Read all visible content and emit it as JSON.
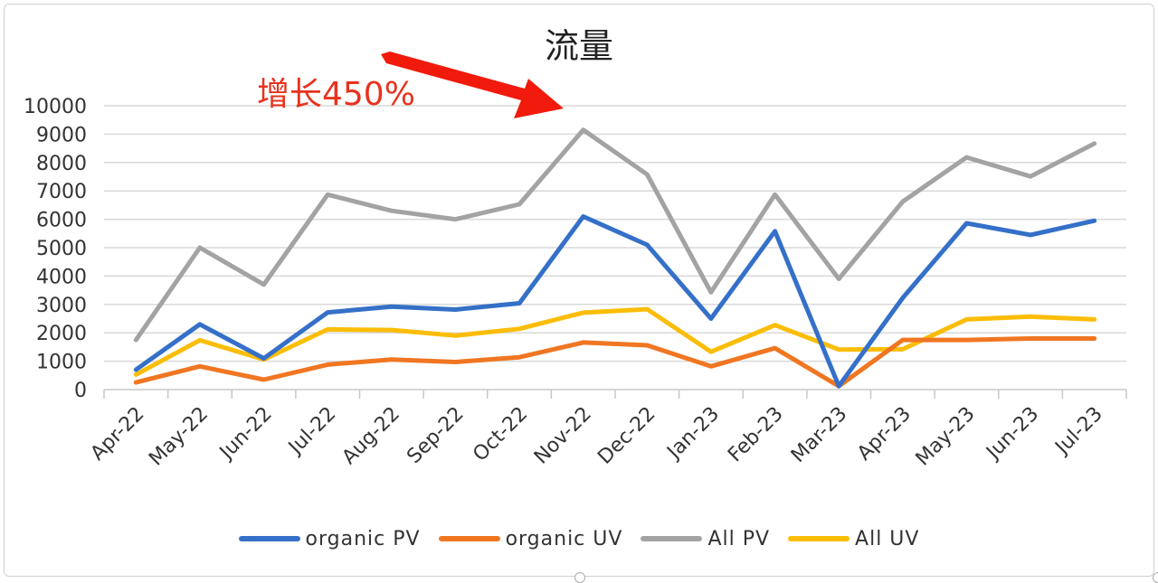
{
  "chart_data": {
    "type": "line",
    "title": "流量",
    "xlabel": "",
    "ylabel": "",
    "ylim": [
      0,
      10000
    ],
    "yticks": [
      0,
      1000,
      2000,
      3000,
      4000,
      5000,
      6000,
      7000,
      8000,
      9000,
      10000
    ],
    "grid": true,
    "legend_position": "bottom",
    "categories": [
      "Apr-22",
      "May-22",
      "Jun-22",
      "Jul-22",
      "Aug-22",
      "Sep-22",
      "Oct-22",
      "Nov-22",
      "Dec-22",
      "Jan-23",
      "Feb-23",
      "Mar-23",
      "Apr-23",
      "May-23",
      "Jun-23",
      "Jul-23"
    ],
    "series": [
      {
        "name": "organic PV",
        "color": "#3570c8",
        "values": [
          700,
          2300,
          1100,
          2720,
          2920,
          2820,
          3040,
          6100,
          5100,
          2500,
          5580,
          120,
          3230,
          5860,
          5450,
          5950
        ]
      },
      {
        "name": "organic UV",
        "color": "#f07622",
        "values": [
          250,
          820,
          350,
          880,
          1060,
          970,
          1140,
          1660,
          1560,
          820,
          1460,
          120,
          1750,
          1750,
          1800,
          1800
        ]
      },
      {
        "name": "All PV",
        "color": "#a3a3a3",
        "values": [
          1750,
          5000,
          3700,
          6870,
          6300,
          6000,
          6530,
          9150,
          7580,
          3430,
          6870,
          3900,
          6620,
          8180,
          7510,
          8670
        ]
      },
      {
        "name": "All UV",
        "color": "#fbbd08",
        "values": [
          530,
          1740,
          1060,
          2120,
          2100,
          1900,
          2140,
          2710,
          2830,
          1330,
          2270,
          1410,
          1420,
          2470,
          2570,
          2470
        ]
      }
    ],
    "annotation": {
      "text": "增长450%",
      "color": "#e8321e",
      "arrow_color": "#f21a0c"
    }
  },
  "legend": {
    "items": [
      {
        "label": "organic PV",
        "color": "#3570c8"
      },
      {
        "label": "organic UV",
        "color": "#f07622"
      },
      {
        "label": "All PV",
        "color": "#a3a3a3"
      },
      {
        "label": "All UV",
        "color": "#fbbd08"
      }
    ]
  }
}
